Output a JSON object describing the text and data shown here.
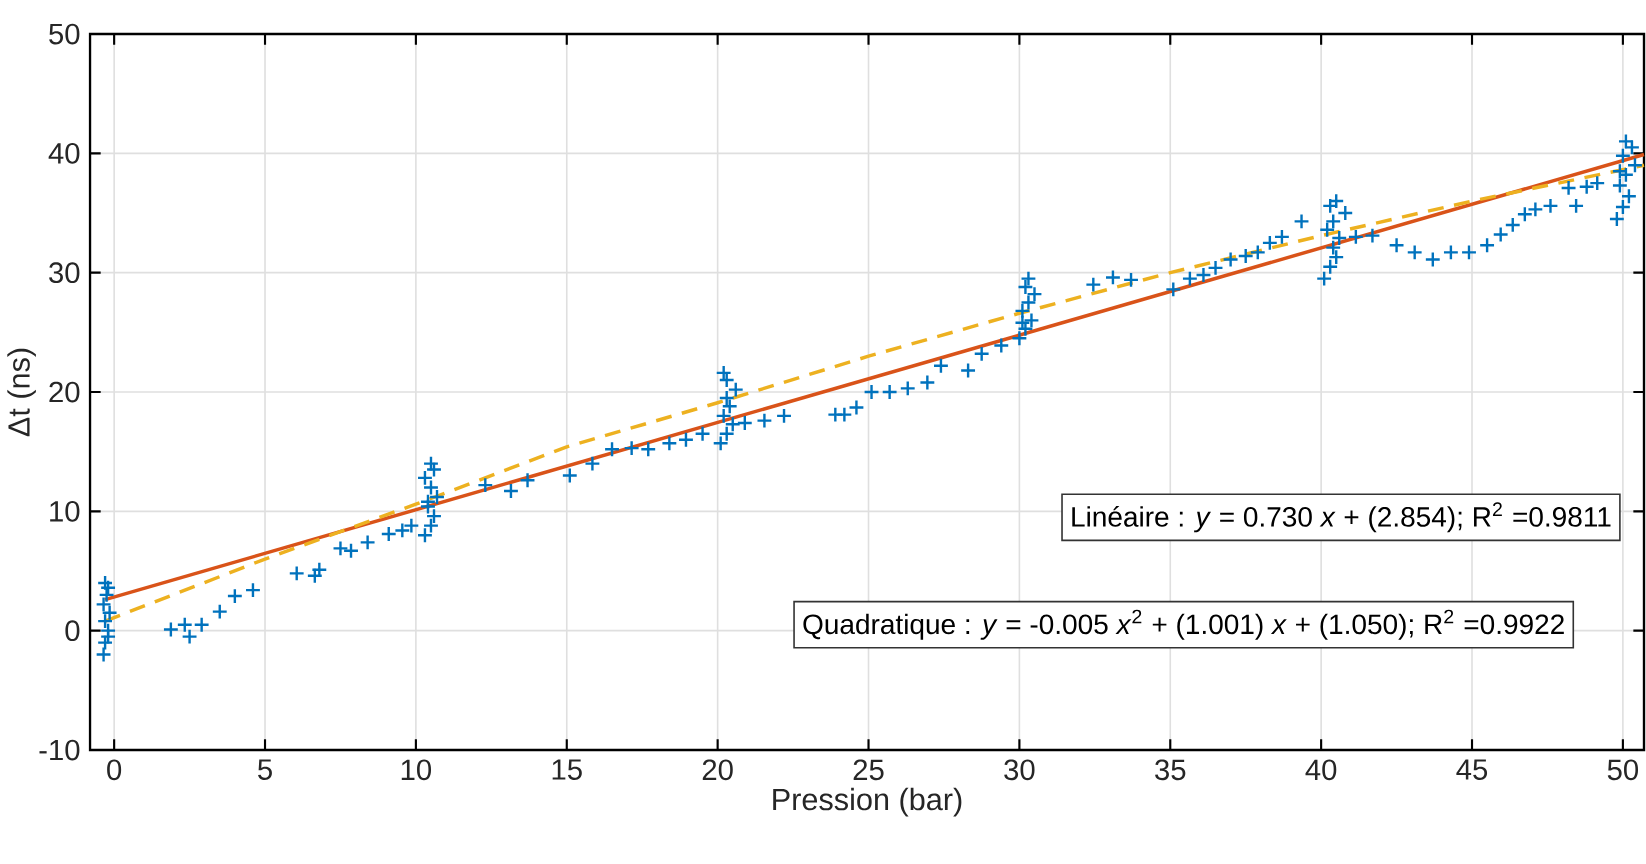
{
  "chart_data": {
    "type": "scatter",
    "xlabel": "Pression (bar)",
    "ylabel": "Δt (ns)",
    "xlim": [
      -0.8,
      50.7
    ],
    "ylim": [
      -10,
      50
    ],
    "xticks": [
      0,
      5,
      10,
      15,
      20,
      25,
      30,
      35,
      40,
      45,
      50
    ],
    "yticks": [
      -10,
      0,
      10,
      20,
      30,
      40,
      50
    ],
    "grid": true,
    "annotations": [
      "Linéaire : *y* = 0.730 *x* + (2.854); R$^{2}$ =0.9811",
      "Quadratique : *y* = -0.005 *x*$^{2}$ + (1.001) *x* + (1.050); R$^{2}$ =0.9922"
    ],
    "series": [
      {
        "color": "#0072bd",
        "marker": "cross",
        "x": [
          -0.35,
          -0.3,
          -0.2,
          -0.3,
          -0.15,
          -0.35,
          -0.25,
          -0.2,
          -0.3,
          -0.2,
          1.88,
          2.34,
          2.5,
          2.9,
          3.5,
          4.0,
          4.6,
          6.05,
          6.65,
          6.8,
          7.5,
          7.85,
          8.4,
          9.1,
          9.55,
          9.85,
          10.3,
          10.5,
          10.6,
          10.4,
          10.7,
          10.5,
          10.3,
          10.6,
          10.5,
          10.4,
          12.3,
          13.15,
          13.7,
          15.1,
          15.85,
          16.5,
          17.15,
          17.7,
          18.4,
          18.95,
          19.5,
          20.1,
          20.3,
          20.5,
          20.2,
          20.4,
          20.3,
          20.6,
          20.3,
          20.2,
          20.9,
          21.55,
          22.2,
          23.9,
          24.2,
          24.6,
          25.1,
          25.7,
          26.3,
          26.95,
          27.4,
          28.3,
          28.75,
          29.4,
          30.0,
          30.2,
          30.4,
          30.1,
          30.3,
          30.5,
          30.2,
          30.3,
          30.1,
          32.45,
          33.1,
          33.7,
          35.1,
          35.65,
          36.1,
          36.5,
          37.0,
          37.5,
          37.9,
          38.3,
          38.7,
          39.35,
          40.1,
          40.3,
          40.5,
          40.4,
          40.6,
          40.2,
          40.4,
          40.8,
          40.3,
          40.5,
          41.15,
          41.7,
          42.5,
          43.1,
          43.7,
          44.3,
          44.9,
          45.5,
          45.95,
          46.35,
          46.75,
          47.1,
          47.6,
          48.45,
          48.2,
          48.8,
          49.15,
          49.8,
          50.0,
          50.2,
          49.9,
          50.1,
          50.4,
          50.0,
          50.3,
          50.1,
          49.9
        ],
        "values": [
          -2,
          -1,
          0,
          0.8,
          1.5,
          2.2,
          3,
          3.6,
          4,
          -0.5,
          0.1,
          0.5,
          -0.5,
          0.5,
          1.6,
          2.9,
          3.4,
          4.8,
          4.6,
          5.1,
          6.9,
          6.7,
          7.4,
          8.1,
          8.4,
          8.8,
          8,
          8.8,
          9.6,
          10.4,
          11.2,
          12,
          12.8,
          13.5,
          14,
          10.8,
          12.2,
          11.7,
          12.6,
          13.0,
          14.0,
          15.2,
          15.3,
          15.2,
          15.7,
          16.0,
          16.5,
          15.7,
          16.5,
          17.3,
          18,
          18.8,
          19.5,
          20.2,
          21,
          21.6,
          17.4,
          17.6,
          18.0,
          18.1,
          18.1,
          18.7,
          20.0,
          20.0,
          20.3,
          20.8,
          22.2,
          21.8,
          23.2,
          23.9,
          24.5,
          25.3,
          26,
          26.8,
          27.5,
          28.2,
          28.8,
          29.5,
          25.8,
          29.0,
          29.6,
          29.4,
          28.6,
          29.5,
          29.8,
          30.4,
          31.1,
          31.4,
          31.7,
          32.5,
          33.0,
          34.3,
          29.5,
          30.5,
          31.3,
          32.1,
          32.9,
          33.6,
          34.3,
          35,
          35.6,
          36,
          33.0,
          33.1,
          32.3,
          31.7,
          31.1,
          31.7,
          31.7,
          32.3,
          33.2,
          34.0,
          34.9,
          35.3,
          35.6,
          35.6,
          37.1,
          37.2,
          37.5,
          34.5,
          35.5,
          36.4,
          37.3,
          38.2,
          39,
          39.8,
          40.5,
          41,
          38.5
        ]
      },
      {
        "type": "line",
        "color": "#d95319",
        "line_style": "solid",
        "x": [
          -0.3,
          50.7
        ],
        "values": [
          2.6,
          39.9
        ]
      },
      {
        "type": "line",
        "color": "#edb120",
        "line_style": "dashed",
        "x": [
          -0.3,
          5,
          10,
          15,
          20,
          25,
          30,
          35,
          40,
          45,
          50.7
        ],
        "values": [
          0.8,
          6.0,
          10.6,
          15.4,
          19.1,
          23.0,
          26.6,
          30.0,
          33.1,
          36.0,
          39.0
        ]
      }
    ]
  }
}
